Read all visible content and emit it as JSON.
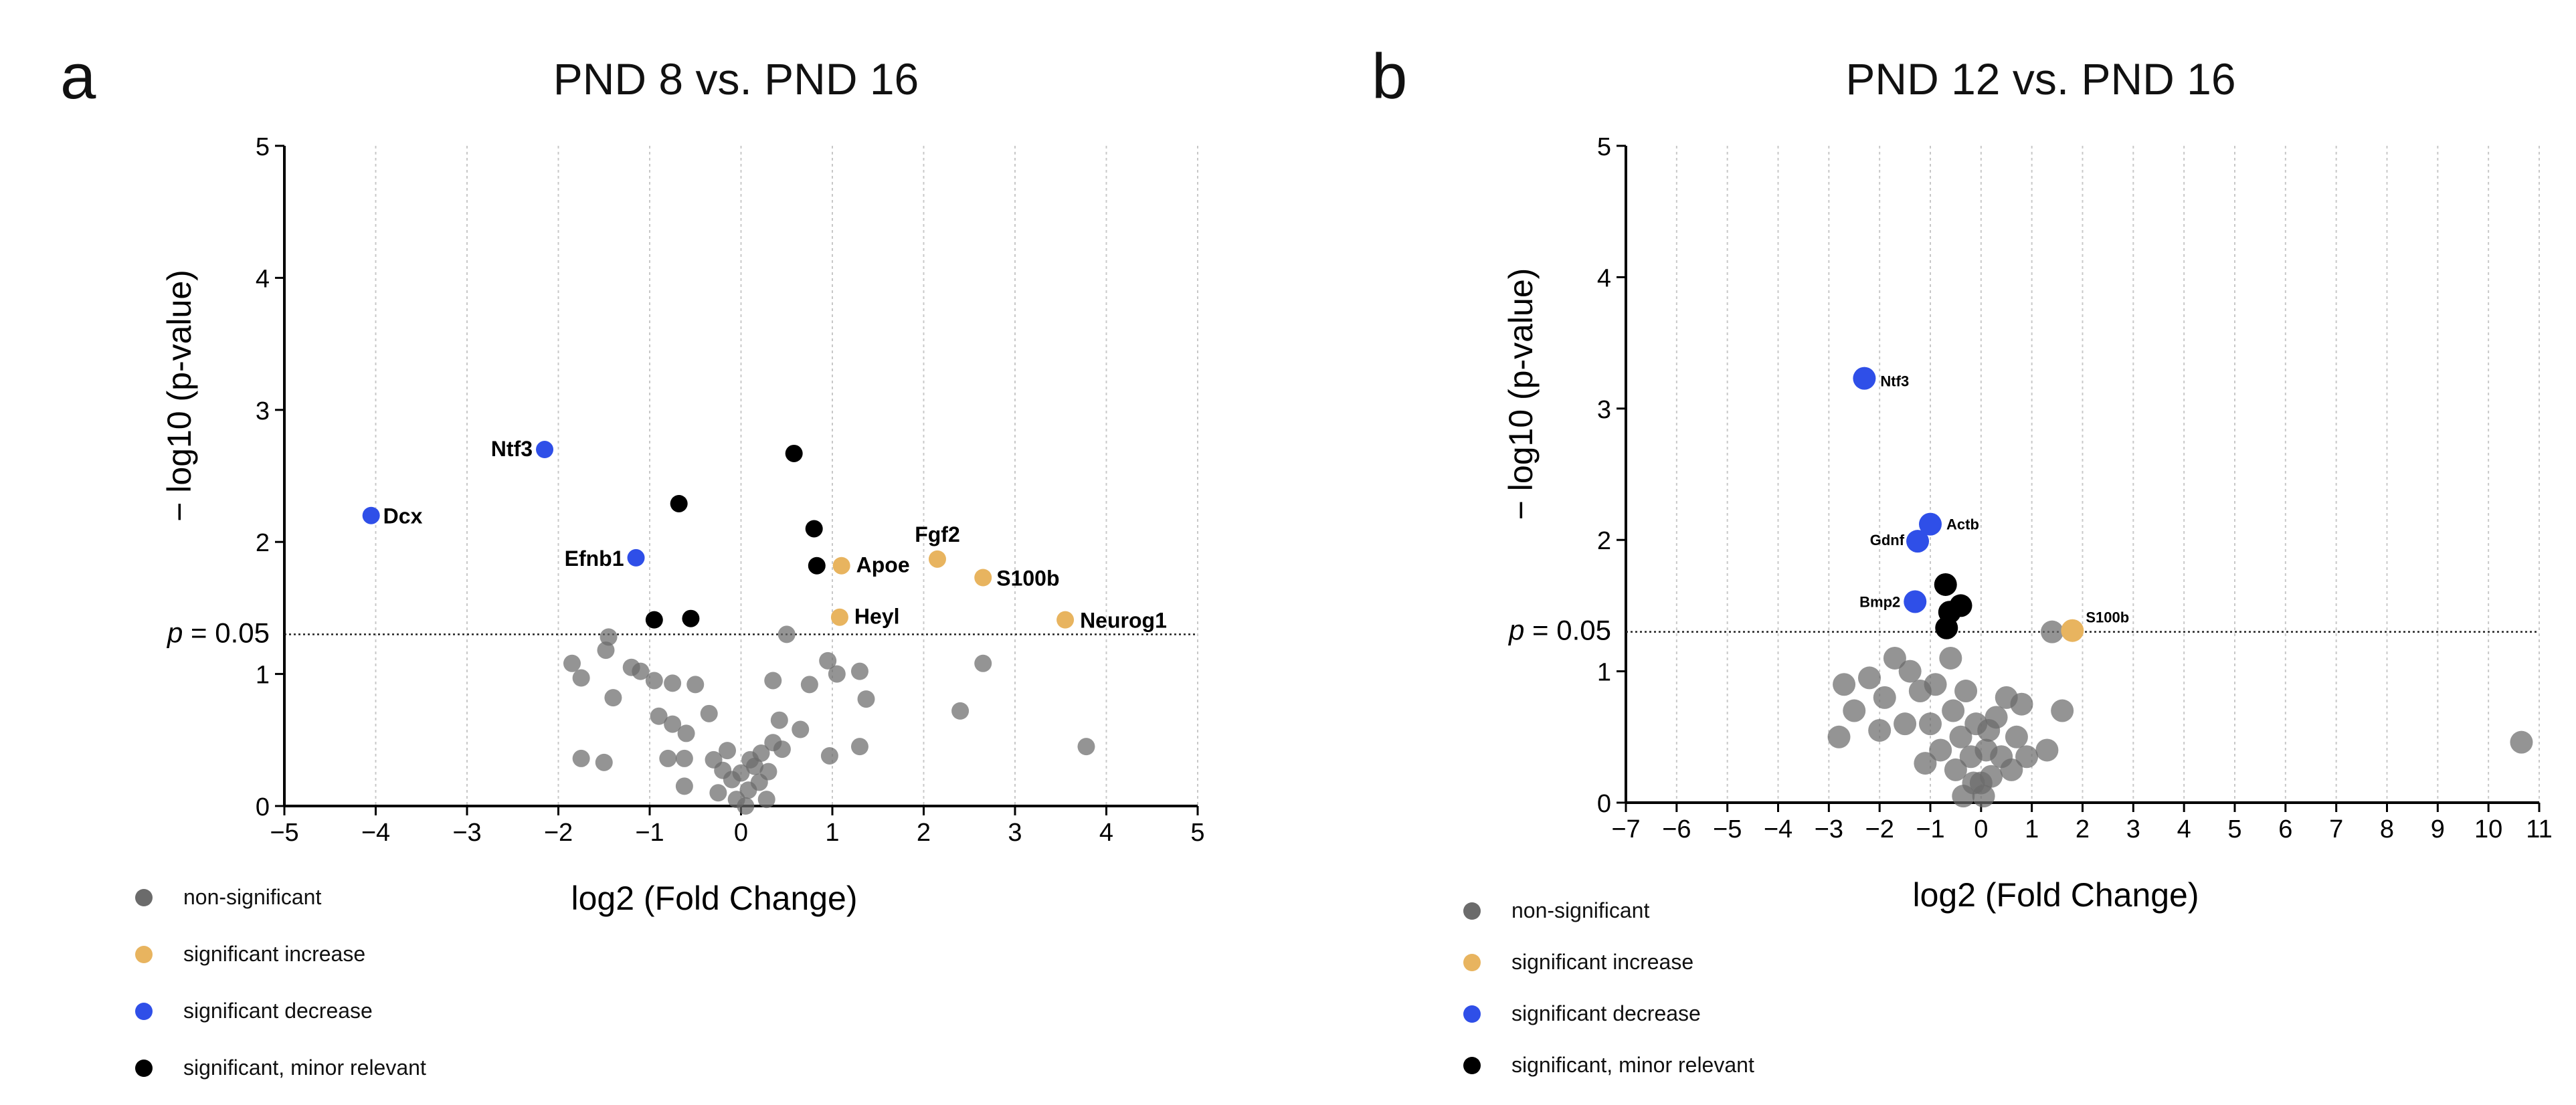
{
  "colors": {
    "non_significant": "#6b6b6b",
    "significant_increase": "#e8b45f",
    "significant_decrease": "#2f4fe8",
    "significant_minor": "#000000",
    "grid": "#c8c8c8"
  },
  "legend": {
    "non_significant": "non-significant",
    "significant_increase": "significant increase",
    "significant_decrease": "significant decrease",
    "significant_minor": "significant, minor relevant"
  },
  "chart_data": [
    {
      "panel": "a",
      "type": "scatter",
      "title": "PND 8 vs. PND 16",
      "xlabel": "log2 (Fold Change)",
      "ylabel": "− log10 (p-value)",
      "xlim": [
        -5,
        5
      ],
      "ylim": [
        0,
        5
      ],
      "xticks": [
        "−5",
        "−4",
        "−3",
        "−2",
        "−1",
        "0",
        "1",
        "2",
        "3",
        "4",
        "5"
      ],
      "yticks": [
        "0",
        "1",
        "2",
        "3",
        "4",
        "5"
      ],
      "threshold": {
        "y": 1.3,
        "label_prefix": "p",
        "label_suffix": " = 0.05"
      },
      "grid": "vertical dotted",
      "points": [
        {
          "x": -4.05,
          "y": 2.2,
          "cat": "significant_decrease",
          "label": "Dcx"
        },
        {
          "x": -2.15,
          "y": 2.7,
          "cat": "significant_decrease",
          "label": "Ntf3"
        },
        {
          "x": -1.15,
          "y": 1.88,
          "cat": "significant_decrease",
          "label": "Efnb1"
        },
        {
          "x": 1.1,
          "y": 1.82,
          "cat": "significant_increase",
          "label": "Apoe"
        },
        {
          "x": 2.15,
          "y": 1.87,
          "cat": "significant_increase",
          "label": "Fgf2"
        },
        {
          "x": 2.65,
          "y": 1.73,
          "cat": "significant_increase",
          "label": "S100b"
        },
        {
          "x": 1.08,
          "y": 1.43,
          "cat": "significant_increase",
          "label": "Heyl"
        },
        {
          "x": 3.55,
          "y": 1.41,
          "cat": "significant_increase",
          "label": "Neurog1"
        },
        {
          "x": 0.58,
          "y": 2.67,
          "cat": "significant_minor"
        },
        {
          "x": -0.68,
          "y": 2.29,
          "cat": "significant_minor"
        },
        {
          "x": 0.8,
          "y": 2.1,
          "cat": "significant_minor"
        },
        {
          "x": 0.83,
          "y": 1.82,
          "cat": "significant_minor"
        },
        {
          "x": -0.95,
          "y": 1.41,
          "cat": "significant_minor"
        },
        {
          "x": -0.55,
          "y": 1.42,
          "cat": "significant_minor"
        },
        {
          "x": -1.45,
          "y": 1.28,
          "cat": "non_significant"
        },
        {
          "x": -1.48,
          "y": 1.18,
          "cat": "non_significant"
        },
        {
          "x": -1.85,
          "y": 1.08,
          "cat": "non_significant"
        },
        {
          "x": -1.75,
          "y": 0.97,
          "cat": "non_significant"
        },
        {
          "x": -1.2,
          "y": 1.05,
          "cat": "non_significant"
        },
        {
          "x": -1.1,
          "y": 1.02,
          "cat": "non_significant"
        },
        {
          "x": -0.95,
          "y": 0.95,
          "cat": "non_significant"
        },
        {
          "x": -0.75,
          "y": 0.93,
          "cat": "non_significant"
        },
        {
          "x": -0.5,
          "y": 0.92,
          "cat": "non_significant"
        },
        {
          "x": -1.4,
          "y": 0.82,
          "cat": "non_significant"
        },
        {
          "x": -0.9,
          "y": 0.68,
          "cat": "non_significant"
        },
        {
          "x": -0.75,
          "y": 0.62,
          "cat": "non_significant"
        },
        {
          "x": -0.35,
          "y": 0.7,
          "cat": "non_significant"
        },
        {
          "x": -0.6,
          "y": 0.55,
          "cat": "non_significant"
        },
        {
          "x": -1.75,
          "y": 0.36,
          "cat": "non_significant"
        },
        {
          "x": -1.5,
          "y": 0.33,
          "cat": "non_significant"
        },
        {
          "x": -0.8,
          "y": 0.36,
          "cat": "non_significant"
        },
        {
          "x": -0.62,
          "y": 0.36,
          "cat": "non_significant"
        },
        {
          "x": -0.62,
          "y": 0.15,
          "cat": "non_significant"
        },
        {
          "x": 0.5,
          "y": 1.3,
          "cat": "non_significant"
        },
        {
          "x": 0.95,
          "y": 1.1,
          "cat": "non_significant"
        },
        {
          "x": 1.05,
          "y": 1.0,
          "cat": "non_significant"
        },
        {
          "x": 1.3,
          "y": 1.02,
          "cat": "non_significant"
        },
        {
          "x": 0.35,
          "y": 0.95,
          "cat": "non_significant"
        },
        {
          "x": 0.75,
          "y": 0.92,
          "cat": "non_significant"
        },
        {
          "x": 1.37,
          "y": 0.81,
          "cat": "non_significant"
        },
        {
          "x": 2.65,
          "y": 1.08,
          "cat": "non_significant"
        },
        {
          "x": 2.4,
          "y": 0.72,
          "cat": "non_significant"
        },
        {
          "x": 0.42,
          "y": 0.65,
          "cat": "non_significant"
        },
        {
          "x": 0.35,
          "y": 0.48,
          "cat": "non_significant"
        },
        {
          "x": 0.45,
          "y": 0.43,
          "cat": "non_significant"
        },
        {
          "x": 0.65,
          "y": 0.58,
          "cat": "non_significant"
        },
        {
          "x": 0.97,
          "y": 0.38,
          "cat": "non_significant"
        },
        {
          "x": 1.3,
          "y": 0.45,
          "cat": "non_significant"
        },
        {
          "x": 3.78,
          "y": 0.45,
          "cat": "non_significant"
        },
        {
          "x": -0.3,
          "y": 0.35,
          "cat": "non_significant"
        },
        {
          "x": -0.2,
          "y": 0.27,
          "cat": "non_significant"
        },
        {
          "x": -0.1,
          "y": 0.2,
          "cat": "non_significant"
        },
        {
          "x": 0.0,
          "y": 0.25,
          "cat": "non_significant"
        },
        {
          "x": 0.08,
          "y": 0.12,
          "cat": "non_significant"
        },
        {
          "x": 0.15,
          "y": 0.3,
          "cat": "non_significant"
        },
        {
          "x": 0.2,
          "y": 0.18,
          "cat": "non_significant"
        },
        {
          "x": 0.28,
          "y": 0.05,
          "cat": "non_significant"
        },
        {
          "x": -0.05,
          "y": 0.05,
          "cat": "non_significant"
        },
        {
          "x": -0.25,
          "y": 0.1,
          "cat": "non_significant"
        },
        {
          "x": 0.3,
          "y": 0.26,
          "cat": "non_significant"
        },
        {
          "x": 0.1,
          "y": 0.35,
          "cat": "non_significant"
        },
        {
          "x": -0.15,
          "y": 0.42,
          "cat": "non_significant"
        },
        {
          "x": 0.22,
          "y": 0.4,
          "cat": "non_significant"
        },
        {
          "x": 0.05,
          "y": 0.0,
          "cat": "non_significant"
        }
      ]
    },
    {
      "panel": "b",
      "type": "scatter",
      "title": "PND 12 vs. PND 16",
      "xlabel": "log2 (Fold Change)",
      "ylabel": "− log10 (p-value)",
      "xlim": [
        -7,
        11
      ],
      "ylim": [
        0,
        5
      ],
      "xticks": [
        "−7",
        "−6",
        "−5",
        "−4",
        "−3",
        "−2",
        "−1",
        "0",
        "1",
        "2",
        "3",
        "4",
        "5",
        "6",
        "7",
        "8",
        "9",
        "10",
        "11"
      ],
      "yticks": [
        "0",
        "1",
        "2",
        "3",
        "4",
        "5"
      ],
      "threshold": {
        "y": 1.3,
        "label_prefix": "p",
        "label_suffix": " = 0.05"
      },
      "grid": "vertical dotted",
      "points": [
        {
          "x": -2.3,
          "y": 3.23,
          "cat": "significant_decrease",
          "label": "Ntf3"
        },
        {
          "x": -1.0,
          "y": 2.12,
          "cat": "significant_decrease",
          "label": "Actb"
        },
        {
          "x": -1.25,
          "y": 1.99,
          "cat": "significant_decrease",
          "label": "Gdnf"
        },
        {
          "x": -1.3,
          "y": 1.53,
          "cat": "significant_decrease",
          "label": "Bmp2"
        },
        {
          "x": 1.8,
          "y": 1.31,
          "cat": "significant_increase",
          "label": "S100b"
        },
        {
          "x": -0.7,
          "y": 1.66,
          "cat": "significant_minor"
        },
        {
          "x": -0.4,
          "y": 1.5,
          "cat": "significant_minor"
        },
        {
          "x": -0.62,
          "y": 1.45,
          "cat": "significant_minor"
        },
        {
          "x": -0.68,
          "y": 1.33,
          "cat": "significant_minor"
        },
        {
          "x": 1.4,
          "y": 1.3,
          "cat": "non_significant"
        },
        {
          "x": -2.7,
          "y": 0.9,
          "cat": "non_significant"
        },
        {
          "x": -2.8,
          "y": 0.5,
          "cat": "non_significant"
        },
        {
          "x": -2.5,
          "y": 0.7,
          "cat": "non_significant"
        },
        {
          "x": -2.2,
          "y": 0.95,
          "cat": "non_significant"
        },
        {
          "x": -2.0,
          "y": 0.55,
          "cat": "non_significant"
        },
        {
          "x": -1.9,
          "y": 0.8,
          "cat": "non_significant"
        },
        {
          "x": -1.7,
          "y": 1.1,
          "cat": "non_significant"
        },
        {
          "x": -1.5,
          "y": 0.6,
          "cat": "non_significant"
        },
        {
          "x": -1.4,
          "y": 1.0,
          "cat": "non_significant"
        },
        {
          "x": -1.1,
          "y": 0.3,
          "cat": "non_significant"
        },
        {
          "x": -1.2,
          "y": 0.85,
          "cat": "non_significant"
        },
        {
          "x": -1.0,
          "y": 0.6,
          "cat": "non_significant"
        },
        {
          "x": -0.9,
          "y": 0.9,
          "cat": "non_significant"
        },
        {
          "x": -0.8,
          "y": 0.4,
          "cat": "non_significant"
        },
        {
          "x": -0.6,
          "y": 1.1,
          "cat": "non_significant"
        },
        {
          "x": -0.55,
          "y": 0.7,
          "cat": "non_significant"
        },
        {
          "x": -0.5,
          "y": 0.25,
          "cat": "non_significant"
        },
        {
          "x": -0.4,
          "y": 0.5,
          "cat": "non_significant"
        },
        {
          "x": -0.3,
          "y": 0.85,
          "cat": "non_significant"
        },
        {
          "x": -0.2,
          "y": 0.35,
          "cat": "non_significant"
        },
        {
          "x": -0.1,
          "y": 0.6,
          "cat": "non_significant"
        },
        {
          "x": 0.0,
          "y": 0.15,
          "cat": "non_significant"
        },
        {
          "x": 0.05,
          "y": 0.05,
          "cat": "non_significant"
        },
        {
          "x": 0.1,
          "y": 0.4,
          "cat": "non_significant"
        },
        {
          "x": 0.2,
          "y": 0.2,
          "cat": "non_significant"
        },
        {
          "x": 0.3,
          "y": 0.65,
          "cat": "non_significant"
        },
        {
          "x": 0.4,
          "y": 0.35,
          "cat": "non_significant"
        },
        {
          "x": 0.5,
          "y": 0.8,
          "cat": "non_significant"
        },
        {
          "x": 0.6,
          "y": 0.25,
          "cat": "non_significant"
        },
        {
          "x": 0.7,
          "y": 0.5,
          "cat": "non_significant"
        },
        {
          "x": 0.8,
          "y": 0.75,
          "cat": "non_significant"
        },
        {
          "x": 0.9,
          "y": 0.35,
          "cat": "non_significant"
        },
        {
          "x": 1.3,
          "y": 0.4,
          "cat": "non_significant"
        },
        {
          "x": 1.6,
          "y": 0.7,
          "cat": "non_significant"
        },
        {
          "x": -0.35,
          "y": 0.05,
          "cat": "non_significant"
        },
        {
          "x": 0.15,
          "y": 0.55,
          "cat": "non_significant"
        },
        {
          "x": -0.15,
          "y": 0.15,
          "cat": "non_significant"
        },
        {
          "x": 10.65,
          "y": 0.46,
          "cat": "non_significant"
        }
      ]
    }
  ]
}
